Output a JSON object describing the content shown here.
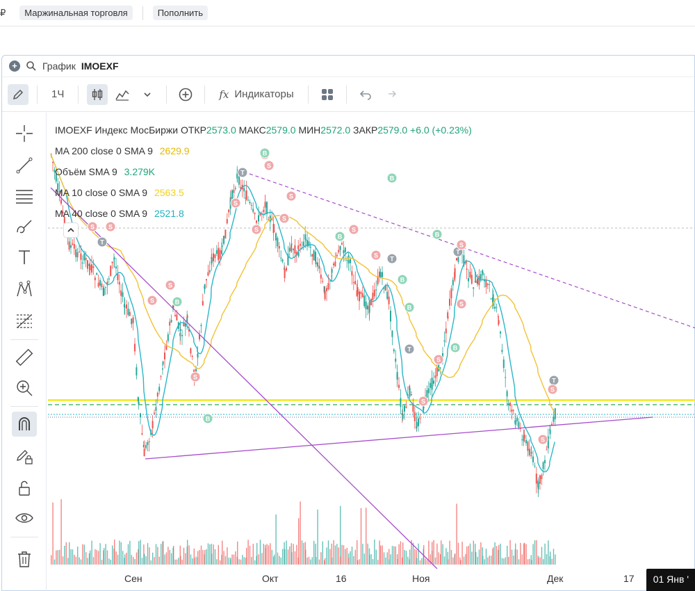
{
  "topbar": {
    "currency": "₽",
    "margin_label": "Маржинальная торговля",
    "topup_label": "Пополнить"
  },
  "window": {
    "title_label": "График",
    "ticker": "IMOEXF"
  },
  "toolbar": {
    "interval": "1Ч",
    "indicators_label": "Индикаторы"
  },
  "legend": {
    "main": {
      "text": "IMOEXF Индекс МосБиржи",
      "open_label": "ОТКР",
      "open": "2573.0",
      "high_label": "МАКС",
      "high": "2579.0",
      "low_label": "МИН",
      "low": "2572.0",
      "close_label": "ЗАКР",
      "close": "2579.0",
      "change": "+6.0 (+0.23%)"
    },
    "ma200": {
      "label": "MA 200 close 0 SMA 9",
      "value": "2629.9"
    },
    "volume": {
      "label": "Объём SMA 9",
      "value": "3.279K"
    },
    "ma10": {
      "label": "MA 10 close 0 SMA 9",
      "value": "2563.5"
    },
    "ma40": {
      "label": "MA 40 close 0 SMA 9",
      "value": "2521.8"
    }
  },
  "xaxis": {
    "labels": [
      "Сен",
      "Окт",
      "16",
      "Ноя",
      "Дек",
      "17"
    ],
    "current_date": "01 Янв '"
  },
  "colors": {
    "up": "#26a69a",
    "down": "#ef5350",
    "ma200": "#f2c233",
    "ma10": "#f2e24a",
    "ma40": "#29b6c9",
    "trend": "#a64bc9"
  },
  "tools": [
    "crosshair-icon",
    "line-icon",
    "horizontal-lines-icon",
    "brush-icon",
    "text-icon",
    "pattern-icon",
    "fib-icon",
    "ruler-icon",
    "zoom-icon",
    "magnet-icon",
    "lock-pen-icon",
    "unlock-icon",
    "eye-icon",
    "trash-icon"
  ]
}
